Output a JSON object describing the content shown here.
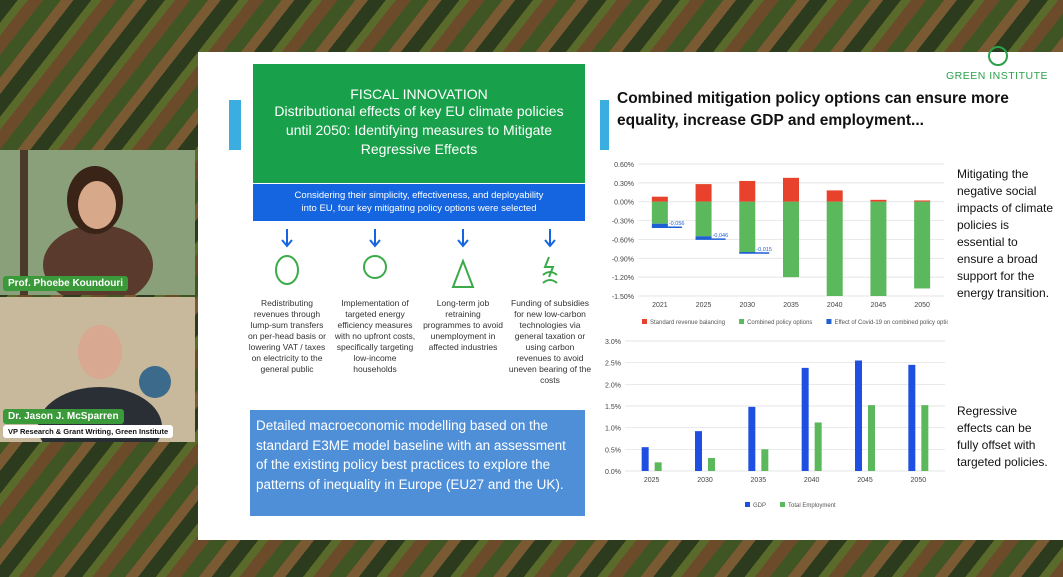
{
  "participants": [
    {
      "name": "Prof. Phoebe Koundouri"
    },
    {
      "name": "Dr. Jason J. McSparren",
      "role": "VP Research & Grant Writing, Green Institute"
    }
  ],
  "slide": {
    "logo": "GREEN INSTITUTE",
    "header": {
      "kicker": "FISCAL INNOVATION",
      "title": "Distributional effects of key EU climate policies until 2050: Identifying measures to Mitigate Regressive Effects"
    },
    "intro": "Considering their simplicity, effectiveness, and deployability into EU, four key mitigating policy options were selected",
    "options": [
      "Redistributing revenues through lump-sum transfers on per-head basis or lowering VAT / taxes on electricity to the general public",
      "Implementation of targeted energy efficiency measures with no upfront costs, specifically targeting low-income households",
      "Long-term job retraining programmes to avoid unemployment in affected industries",
      "Funding of subsidies for new low-carbon technologies via general taxation or using carbon revenues to avoid uneven bearing of the costs"
    ],
    "method": "Detailed macroeconomic modelling based on the standard E3ME model baseline with an assessment of the existing policy best practices to explore the patterns of inequality in Europe (EU27 and the UK).",
    "right_title": "Combined mitigation policy options can ensure more equality, increase GDP and employment...",
    "note_1": "Mitigating the negative social impacts of climate policies is essential to ensure a broad support for the energy transition.",
    "note_2": "Regressive effects can be fully offset with targeted policies.",
    "charts": [
      {
        "type": "bar",
        "stacked": true,
        "grid": true,
        "categories": [
          "2021",
          "2025",
          "2030",
          "2035",
          "2040",
          "2045",
          "2050"
        ],
        "series": [
          {
            "name": "Standard revenue balancing",
            "color": "#e8412c",
            "values": [
              0.08,
              0.28,
              0.33,
              0.38,
              0.18,
              0.03,
              0.02
            ]
          },
          {
            "name": "Combined policy options",
            "color": "#5cb85c",
            "values": [
              -0.35,
              -0.55,
              -0.8,
              -1.2,
              -1.5,
              -1.5,
              -1.38
            ]
          },
          {
            "name": "Effect of Covid-19 on combined policy options",
            "color": "#1f5fd6",
            "values": [
              -0.056,
              -0.046,
              -0.015,
              null,
              null,
              null,
              null
            ],
            "value_labels": [
              "-0,056",
              "-0,046",
              "-0,015",
              null,
              null,
              null,
              null
            ]
          }
        ],
        "ylim": [
          -1.5,
          0.6
        ],
        "yticks": [
          {
            "value": 0.6,
            "label": "0.60%"
          },
          {
            "value": 0.3,
            "label": "0.30%"
          },
          {
            "value": 0,
            "label": "0.00%"
          },
          {
            "value": -0.3,
            "label": "-0.30%"
          },
          {
            "value": -0.6,
            "label": "-0.60%"
          },
          {
            "value": -0.9,
            "label": "-0.90%"
          },
          {
            "value": -1.2,
            "label": "-1.20%"
          },
          {
            "value": -1.5,
            "label": "-1.50%"
          }
        ]
      },
      {
        "type": "bar",
        "stacked": false,
        "grid": true,
        "categories": [
          "2025",
          "2030",
          "2035",
          "2040",
          "2045",
          "2050"
        ],
        "series": [
          {
            "name": "GDP",
            "color": "#1f4fe0",
            "values": [
              0.55,
              0.92,
              1.48,
              2.38,
              2.55,
              2.45
            ]
          },
          {
            "name": "Total Employment",
            "color": "#5cb85c",
            "values": [
              0.2,
              0.3,
              0.5,
              1.12,
              1.52,
              1.52
            ]
          }
        ],
        "ylim": [
          0,
          3
        ],
        "yticks": [
          {
            "value": 0,
            "label": "0.0%"
          },
          {
            "value": 0.5,
            "label": "0.5%"
          },
          {
            "value": 1,
            "label": "1.0%"
          },
          {
            "value": 1.5,
            "label": "1.5%"
          },
          {
            "value": 2,
            "label": "2.0%"
          },
          {
            "value": 2.5,
            "label": "2.5%"
          },
          {
            "value": 3,
            "label": "3.0%"
          }
        ]
      }
    ]
  }
}
